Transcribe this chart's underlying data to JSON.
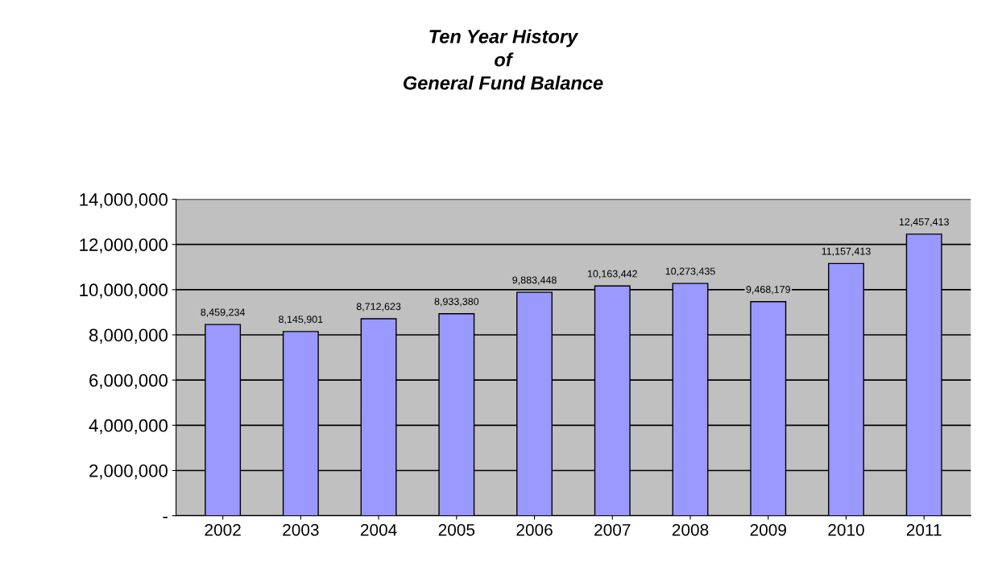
{
  "chart_data": {
    "type": "bar",
    "title": "Ten Year History\nof\nGeneral Fund Balance",
    "categories": [
      "2002",
      "2003",
      "2004",
      "2005",
      "2006",
      "2007",
      "2008",
      "2009",
      "2010",
      "2011"
    ],
    "values": [
      8459234,
      8145901,
      8712623,
      8933380,
      9883448,
      10163442,
      10273435,
      9468179,
      11157413,
      12457413
    ],
    "color": "#9999ff",
    "ylim": [
      0,
      14000000
    ],
    "yticks": [
      {
        "value": 0,
        "label": "-"
      },
      {
        "value": 2000000,
        "label": "2,000,000"
      },
      {
        "value": 4000000,
        "label": "4,000,000"
      },
      {
        "value": 6000000,
        "label": "6,000,000"
      },
      {
        "value": 8000000,
        "label": "8,000,000"
      },
      {
        "value": 10000000,
        "label": "10,000,000"
      },
      {
        "value": 12000000,
        "label": "12,000,000"
      },
      {
        "value": 14000000,
        "label": "14,000,000"
      }
    ],
    "value_labels": [
      "8,459,234",
      "8,145,901",
      "8,712,623",
      "8,933,380",
      "9,883,448",
      "10,163,442",
      "10,273,435",
      "9,468,179",
      "11,157,413",
      "12,457,413"
    ],
    "grid": "y"
  }
}
